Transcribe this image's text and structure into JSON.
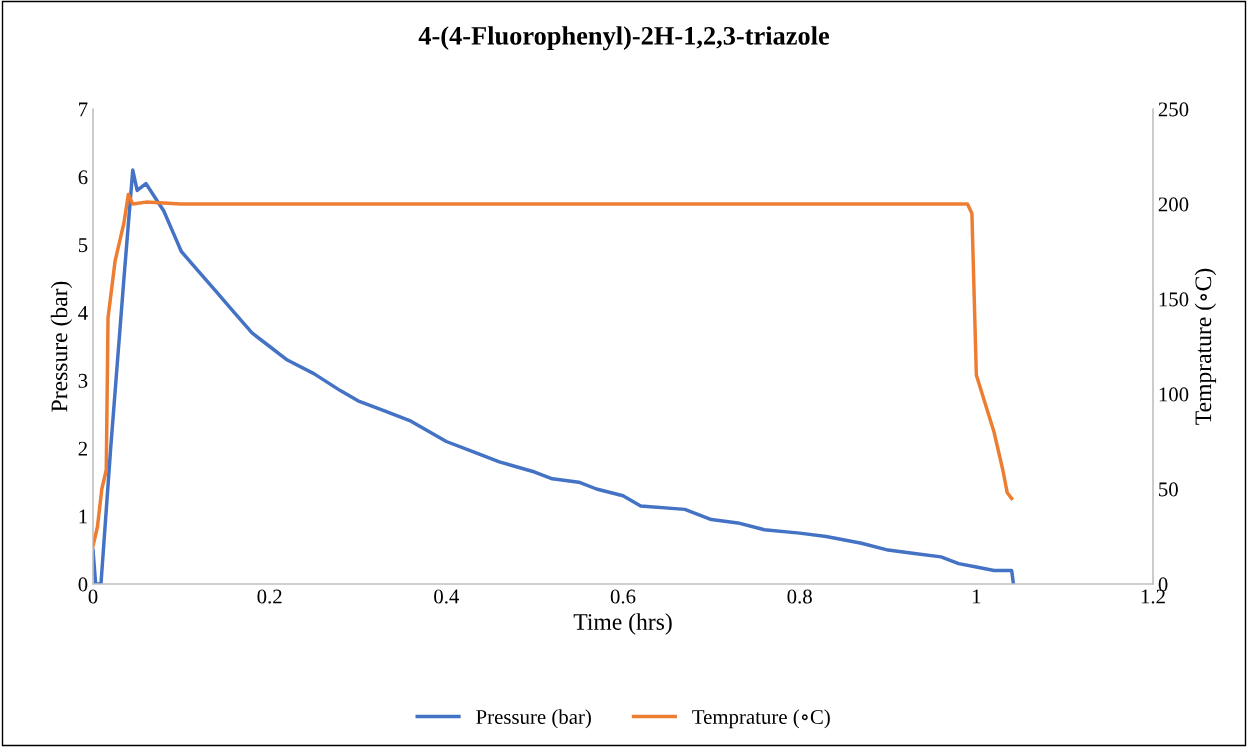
{
  "chart_data": {
    "type": "line",
    "title": "4-(4-Fluorophenyl)-2H-1,2,3-triazole",
    "xlabel": "Time (hrs)",
    "ylabel": "Pressure (bar)",
    "y2label": "Temprature (∘C)",
    "xlim": [
      0,
      1.2
    ],
    "xticks": [
      0,
      0.2,
      0.4,
      0.6,
      0.8,
      1,
      1.2
    ],
    "ylim": [
      0,
      7
    ],
    "yticks": [
      0,
      1,
      2,
      3,
      4,
      5,
      6,
      7
    ],
    "y2lim": [
      0,
      250
    ],
    "y2ticks": [
      0,
      50,
      100,
      150,
      200,
      250
    ],
    "grid": false,
    "legend": "bottom",
    "marker": "none",
    "line_style": "solid",
    "series": [
      {
        "name": "Pressure (bar)",
        "color": "#4472c4",
        "x": [
          0.0,
          0.003,
          0.009,
          0.02,
          0.035,
          0.045,
          0.05,
          0.06,
          0.07,
          0.08,
          0.09,
          0.1,
          0.12,
          0.14,
          0.16,
          0.18,
          0.2,
          0.22,
          0.25,
          0.28,
          0.3,
          0.33,
          0.36,
          0.4,
          0.43,
          0.46,
          0.5,
          0.52,
          0.55,
          0.57,
          0.6,
          0.62,
          0.67,
          0.7,
          0.73,
          0.76,
          0.8,
          0.83,
          0.87,
          0.9,
          0.93,
          0.96,
          0.98,
          1.0,
          1.02,
          1.04,
          1.042
        ],
        "values": [
          0.5,
          0,
          0,
          2.0,
          4.5,
          6.1,
          5.8,
          5.9,
          5.7,
          5.5,
          5.2,
          4.9,
          4.6,
          4.3,
          4.0,
          3.7,
          3.5,
          3.3,
          3.1,
          2.85,
          2.7,
          2.55,
          2.4,
          2.1,
          1.95,
          1.8,
          1.65,
          1.55,
          1.5,
          1.4,
          1.3,
          1.15,
          1.1,
          0.95,
          0.9,
          0.8,
          0.75,
          0.7,
          0.6,
          0.5,
          0.45,
          0.4,
          0.3,
          0.25,
          0.2,
          0.2,
          0
        ]
      },
      {
        "name": "Temprature (∘C)",
        "color": "#ed7d31",
        "axis": "y2",
        "x": [
          0.0,
          0.005,
          0.01,
          0.015,
          0.017,
          0.025,
          0.035,
          0.04,
          0.045,
          0.06,
          0.1,
          0.2,
          0.3,
          0.4,
          0.5,
          0.6,
          0.7,
          0.8,
          0.9,
          0.99,
          0.995,
          1.0,
          1.01,
          1.02,
          1.03,
          1.035,
          1.04
        ],
        "values": [
          20,
          30,
          50,
          60,
          140,
          170,
          190,
          205,
          200,
          201,
          200,
          200,
          200,
          200,
          200,
          200,
          200,
          200,
          200,
          200,
          195,
          110,
          95,
          80,
          60,
          48,
          45
        ]
      }
    ]
  }
}
